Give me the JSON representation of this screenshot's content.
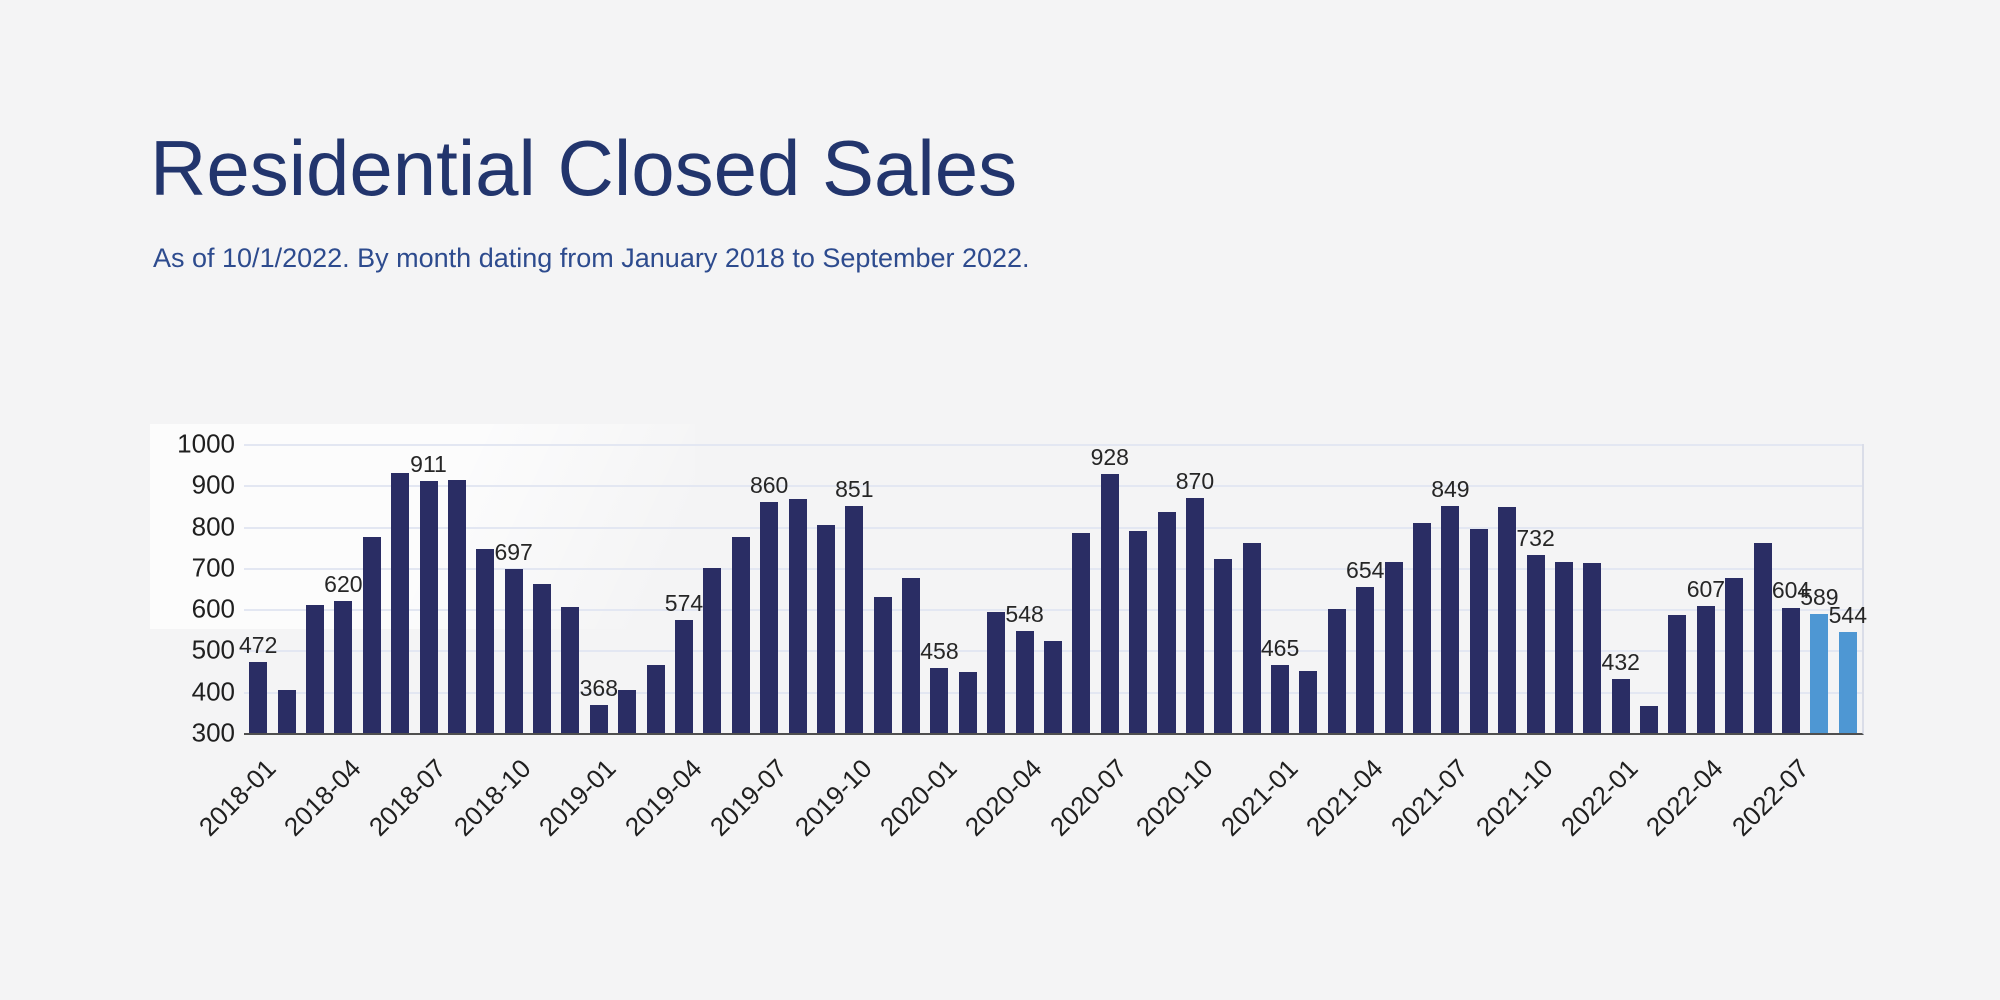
{
  "header": {
    "title": "Residential Closed Sales",
    "subtitle": "As of 10/1/2022. By month dating from January 2018 to September 2022."
  },
  "chart_data": {
    "type": "bar",
    "title": "Residential Closed Sales",
    "subtitle": "As of 10/1/2022. By month dating from January 2018 to September 2022.",
    "xlabel": "",
    "ylabel": "",
    "ylim": [
      300,
      1000
    ],
    "ytick_step": 100,
    "grid": true,
    "legend_position": "none",
    "bar_color": "#2a2d64",
    "highlight_color": "#4e97d3",
    "axis_color": "#4f4f4f",
    "label_color": "#262626",
    "highlight_indices": [
      55,
      56
    ],
    "label_indices": [
      0,
      3,
      6,
      9,
      12,
      15,
      18,
      21,
      24,
      27,
      30,
      33,
      36,
      39,
      42,
      45,
      48,
      51,
      54,
      55,
      56
    ],
    "xtick_every": 3,
    "x": [
      "2018-01",
      "2018-02",
      "2018-03",
      "2018-04",
      "2018-05",
      "2018-06",
      "2018-07",
      "2018-08",
      "2018-09",
      "2018-10",
      "2018-11",
      "2018-12",
      "2019-01",
      "2019-02",
      "2019-03",
      "2019-04",
      "2019-05",
      "2019-06",
      "2019-07",
      "2019-08",
      "2019-09",
      "2019-10",
      "2019-11",
      "2019-12",
      "2020-01",
      "2020-02",
      "2020-03",
      "2020-04",
      "2020-05",
      "2020-06",
      "2020-07",
      "2020-08",
      "2020-09",
      "2020-10",
      "2020-11",
      "2020-12",
      "2021-01",
      "2021-02",
      "2021-03",
      "2021-04",
      "2021-05",
      "2021-06",
      "2021-07",
      "2021-08",
      "2021-09",
      "2021-10",
      "2021-11",
      "2021-12",
      "2022-01",
      "2022-02",
      "2022-03",
      "2022-04",
      "2022-05",
      "2022-06",
      "2022-07",
      "2022-08",
      "2022-09"
    ],
    "values": [
      472,
      405,
      610,
      620,
      775,
      930,
      911,
      913,
      745,
      697,
      660,
      605,
      368,
      405,
      465,
      574,
      700,
      775,
      860,
      866,
      805,
      851,
      630,
      676,
      458,
      448,
      592,
      548,
      524,
      785,
      928,
      790,
      835,
      870,
      722,
      760,
      465,
      450,
      600,
      654,
      715,
      808,
      849,
      795,
      848,
      732,
      715,
      712,
      432,
      365,
      585,
      607,
      675,
      760,
      604,
      589,
      544
    ]
  }
}
